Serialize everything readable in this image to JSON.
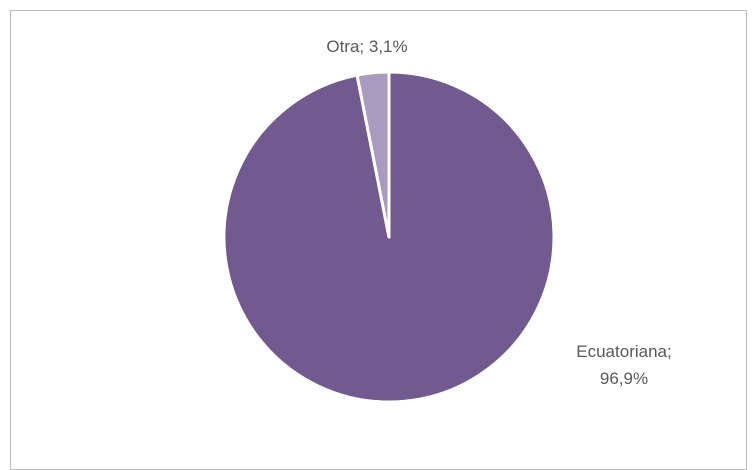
{
  "chart_data": {
    "type": "pie",
    "title": "",
    "slices": [
      {
        "label_line1": "Ecuatoriana;",
        "label_line2": "96,9%",
        "value": 96.9,
        "color": "#725990"
      },
      {
        "label_line1": "Otra; 3,1%",
        "label_line2": "",
        "value": 3.1,
        "color": "#a99abf"
      }
    ],
    "start_angle_deg": 0,
    "direction": "clockwise",
    "legend": "none"
  }
}
